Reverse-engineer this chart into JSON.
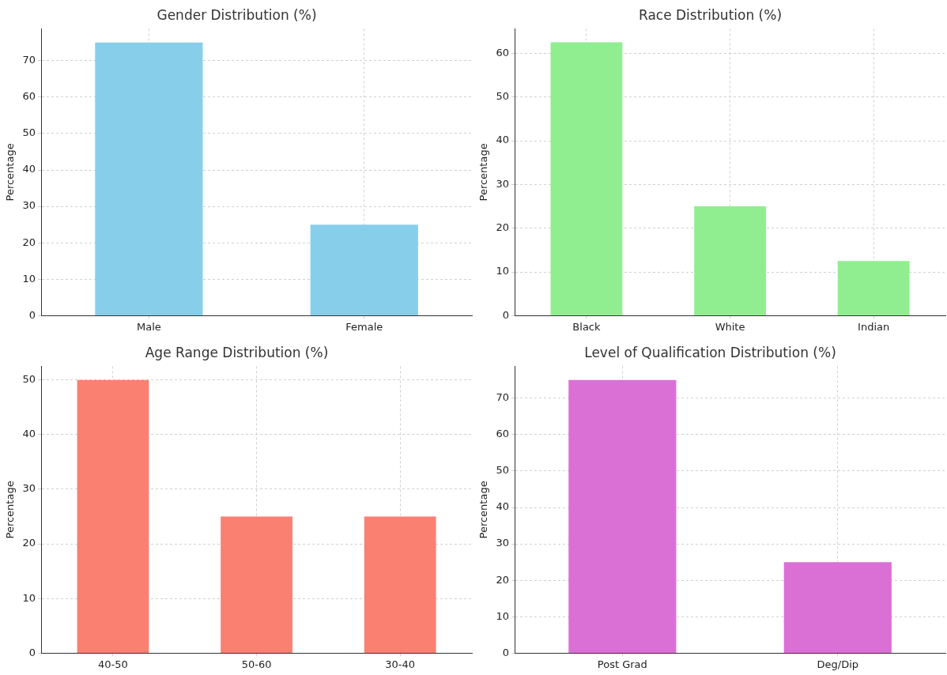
{
  "chart_data": [
    {
      "type": "bar",
      "title": "Gender Distribution (%)",
      "ylabel": "Percentage",
      "categories": [
        "Male",
        "Female"
      ],
      "values": [
        75,
        25
      ],
      "color": "#87ceeb",
      "ylim": [
        0,
        78.75
      ],
      "yticks": [
        0,
        10,
        20,
        30,
        40,
        50,
        60,
        70
      ],
      "grid": true
    },
    {
      "type": "bar",
      "title": "Race Distribution (%)",
      "ylabel": "Percentage",
      "categories": [
        "Black",
        "White",
        "Indian"
      ],
      "values": [
        62.5,
        25,
        12.5
      ],
      "color": "#90ee90",
      "ylim": [
        0,
        65.6
      ],
      "yticks": [
        0,
        10,
        20,
        30,
        40,
        50,
        60
      ],
      "grid": true
    },
    {
      "type": "bar",
      "title": "Age Range Distribution (%)",
      "ylabel": "Percentage",
      "categories": [
        "40-50",
        "50-60",
        "30-40"
      ],
      "values": [
        50,
        25,
        25
      ],
      "color": "#fa8072",
      "ylim": [
        0,
        52.5
      ],
      "yticks": [
        0,
        10,
        20,
        30,
        40,
        50
      ],
      "grid": true
    },
    {
      "type": "bar",
      "title": "Level of Qualification Distribution (%)",
      "ylabel": "Percentage",
      "categories": [
        "Post Grad",
        "Deg/Dip"
      ],
      "values": [
        75,
        25
      ],
      "color": "#da70d6",
      "ylim": [
        0,
        78.75
      ],
      "yticks": [
        0,
        10,
        20,
        30,
        40,
        50,
        60,
        70
      ],
      "grid": true
    }
  ]
}
